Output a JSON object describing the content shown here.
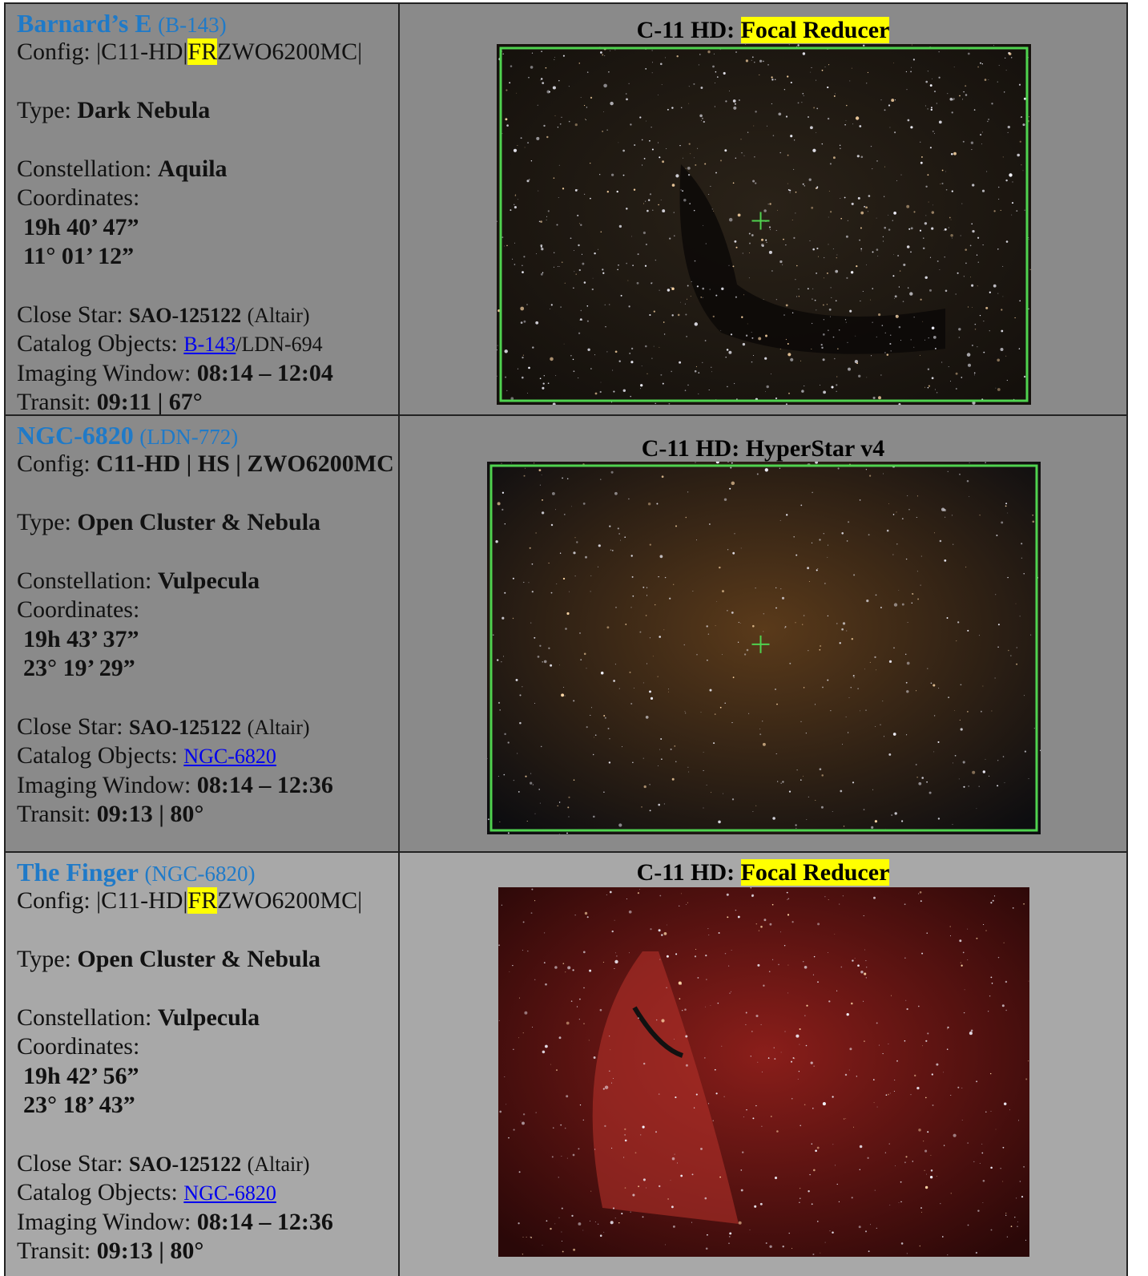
{
  "labels": {
    "config": "Config:",
    "type": "Type:",
    "constellation": "Constellation:",
    "coordinates": "Coordinates:",
    "close_star": "Close Star:",
    "catalog": "Catalog Objects:",
    "window": "Imaging Window:",
    "transit": "Transit:"
  },
  "rows": [
    {
      "title": "Barnard’s E",
      "subtitle": "(B-143)",
      "config": [
        {
          "text": "|C11-HD|",
          "style": "plain"
        },
        {
          "text": "FR",
          "style": "highlight"
        },
        {
          "text": "ZWO6200MC|",
          "style": "plain"
        }
      ],
      "type": "Dark Nebula",
      "constellation": "Aquila",
      "ra": "19h 40’ 47”",
      "dec": "11° 01’ 12”",
      "close_star": "SAO-125122",
      "close_star_note": "(Altair)",
      "catalog_link": "B-143",
      "catalog_rest": "/LDN-694",
      "window": "08:14 – 12:04",
      "transit": "09:11 | 67°",
      "caption": [
        {
          "text": "C-11 HD:",
          "style": "bold"
        },
        {
          "text": "Focal Reducer",
          "style": "highlight"
        }
      ]
    },
    {
      "title": "NGC-6820",
      "subtitle": "(LDN-772)",
      "config": [
        {
          "text": "C11-HD | HS | ZWO6200MC",
          "style": "bold"
        }
      ],
      "type": "Open Cluster & Nebula",
      "constellation": "Vulpecula",
      "ra": "19h 43’ 37”",
      "dec": "23° 19’ 29”",
      "close_star": "SAO-125122",
      "close_star_note": "(Altair)",
      "catalog_link": "NGC-6820",
      "catalog_rest": "",
      "window": "08:14 – 12:36",
      "transit": "09:13 | 80°",
      "caption": [
        {
          "text": "C-11 HD: HyperStar v4",
          "style": "bold"
        }
      ]
    },
    {
      "title": "The Finger",
      "subtitle": "(NGC-6820)",
      "config": [
        {
          "text": "|C11-HD|",
          "style": "plain"
        },
        {
          "text": "FR",
          "style": "highlight"
        },
        {
          "text": "ZWO6200MC|",
          "style": "plain"
        }
      ],
      "type": "Open Cluster & Nebula",
      "constellation": "Vulpecula",
      "ra": "19h 42’ 56”",
      "dec": "23° 18’ 43”",
      "close_star": "SAO-125122",
      "close_star_note": "(Altair)",
      "catalog_link": "NGC-6820",
      "catalog_rest": "",
      "window": "08:14 – 12:36",
      "transit": "09:13 | 80°",
      "caption": [
        {
          "text": "C-11 HD:",
          "style": "bold"
        },
        {
          "text": "Focal Reducer",
          "style": "highlight"
        }
      ]
    }
  ]
}
